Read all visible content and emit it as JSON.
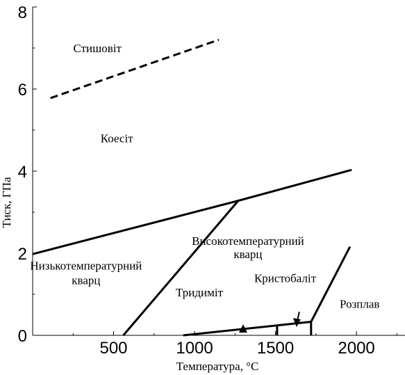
{
  "chart_data": {
    "type": "line",
    "title": "",
    "xlabel": "Температура, °С",
    "ylabel": "Тиск, ГПа",
    "xlim": [
      0,
      2300
    ],
    "ylim": [
      0,
      8
    ],
    "x_ticks": [
      500,
      1000,
      1500,
      2000
    ],
    "y_ticks": [
      0,
      2,
      4,
      6,
      8
    ],
    "x_tick_labels": [
      "500",
      "1000",
      "1500",
      "2000"
    ],
    "y_tick_labels": [
      "0",
      "2",
      "4",
      "6",
      "8"
    ],
    "grid": false,
    "legend": "none",
    "series": [
      {
        "style": "dashed",
        "points": [
          [
            110,
            5.78
          ],
          [
            1150,
            7.2
          ]
        ]
      },
      {
        "style": "solid",
        "points": [
          [
            0,
            1.98
          ],
          [
            1270,
            3.28
          ],
          [
            1970,
            4.03
          ]
        ]
      },
      {
        "style": "solid",
        "points": [
          [
            560,
            0.0
          ],
          [
            1270,
            3.28
          ]
        ]
      },
      {
        "style": "solid",
        "points": [
          [
            930,
            0.0
          ],
          [
            1720,
            0.33
          ]
        ]
      },
      {
        "style": "solid",
        "points": [
          [
            1510,
            0.0
          ],
          [
            1510,
            0.22
          ]
        ]
      },
      {
        "style": "solid",
        "points": [
          [
            1720,
            0.0
          ],
          [
            1720,
            0.33
          ]
        ]
      },
      {
        "style": "solid",
        "points": [
          [
            1720,
            0.33
          ],
          [
            1960,
            2.16
          ]
        ]
      }
    ],
    "markers": [
      {
        "shape": "triangle-up",
        "point": [
          1300,
          0.15
        ]
      },
      {
        "shape": "arrow-down",
        "point": [
          1630,
          0.27
        ]
      }
    ],
    "annotations": [
      {
        "text": "Стишовіт",
        "at": [
          400,
          6.9
        ]
      },
      {
        "text": "Коесіт",
        "at": [
          520,
          4.7
        ]
      },
      {
        "text": "Високотемпературний",
        "at": [
          1330,
          2.2
        ]
      },
      {
        "text": "кварц",
        "at": [
          1330,
          1.88
        ]
      },
      {
        "text": "Низькотемпературний",
        "at": [
          330,
          1.6
        ]
      },
      {
        "text": "кварц",
        "at": [
          330,
          1.25
        ]
      },
      {
        "text": "Кристобаліт",
        "at": [
          1560,
          1.3
        ]
      },
      {
        "text": "Тридиміт",
        "at": [
          1030,
          0.95
        ]
      },
      {
        "text": "Розплав",
        "at": [
          2020,
          0.67
        ]
      }
    ]
  }
}
